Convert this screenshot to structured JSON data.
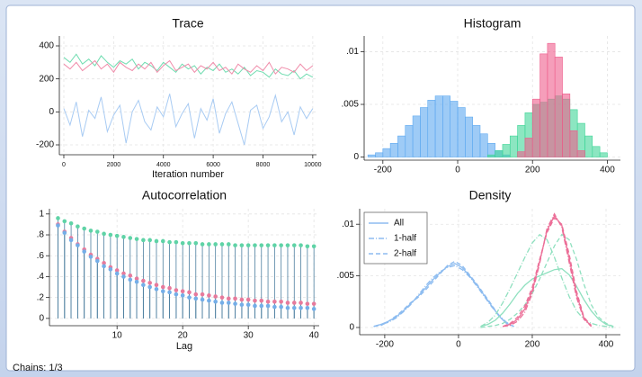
{
  "footer": "Chains: 1/3",
  "chart_data": [
    {
      "type": "line",
      "title": "Trace",
      "xlabel": "Iteration number",
      "x": [
        0,
        250,
        500,
        750,
        1000,
        1250,
        1500,
        1750,
        2000,
        2250,
        2500,
        2750,
        3000,
        3250,
        3500,
        3750,
        4000,
        4250,
        4500,
        4750,
        5000,
        5250,
        5500,
        5750,
        6000,
        6250,
        6500,
        6750,
        7000,
        7250,
        7500,
        7750,
        8000,
        8250,
        8500,
        8750,
        9000,
        9250,
        9500,
        9750,
        10000
      ],
      "series": [
        {
          "color": "#6fdcb0",
          "values": [
            330,
            300,
            350,
            290,
            320,
            280,
            340,
            300,
            270,
            310,
            290,
            320,
            260,
            300,
            280,
            250,
            300,
            270,
            240,
            290,
            260,
            280,
            230,
            270,
            250,
            290,
            240,
            260,
            230,
            270,
            220,
            250,
            240,
            210,
            260,
            230,
            220,
            250,
            200,
            230,
            210
          ]
        },
        {
          "color": "#f08caa",
          "values": [
            290,
            260,
            300,
            250,
            280,
            310,
            260,
            290,
            240,
            300,
            270,
            250,
            290,
            260,
            300,
            240,
            280,
            310,
            250,
            270,
            290,
            240,
            280,
            260,
            300,
            250,
            270,
            230,
            290,
            260,
            240,
            280,
            250,
            300,
            230,
            270,
            260,
            240,
            290,
            250,
            280
          ]
        },
        {
          "color": "#a8cbf3",
          "values": [
            20,
            -80,
            60,
            -150,
            10,
            -40,
            90,
            -120,
            -20,
            40,
            -190,
            0,
            70,
            -60,
            -110,
            30,
            -30,
            110,
            -90,
            -10,
            50,
            -160,
            20,
            -50,
            80,
            -130,
            -10,
            60,
            -70,
            -200,
            10,
            40,
            -100,
            -30,
            100,
            -60,
            0,
            -140,
            30,
            -40,
            20
          ]
        }
      ],
      "xlim": [
        -180,
        10150
      ],
      "ylim": [
        -260,
        460
      ],
      "xticks": [
        0,
        2000,
        4000,
        6000,
        8000,
        10000
      ],
      "yticks": [
        -200,
        0,
        200,
        400
      ],
      "grid": true
    },
    {
      "type": "histogram",
      "title": "Histogram",
      "series": [
        {
          "color": "#5ea9f0",
          "bins": [
            -240,
            -220,
            -200,
            -180,
            -160,
            -140,
            -120,
            -100,
            -80,
            -60,
            -40,
            -20,
            0,
            20,
            40,
            60,
            80,
            100,
            120,
            140
          ],
          "values": [
            0.0002,
            0.0004,
            0.0008,
            0.0013,
            0.002,
            0.003,
            0.0039,
            0.0047,
            0.0054,
            0.0058,
            0.0058,
            0.0053,
            0.0047,
            0.0038,
            0.003,
            0.0022,
            0.0013,
            0.0006,
            0.0002
          ]
        },
        {
          "color": "#3fd597",
          "bins": [
            80,
            100,
            120,
            140,
            160,
            180,
            200,
            220,
            240,
            260,
            280,
            300,
            320,
            340,
            360,
            380,
            400
          ],
          "values": [
            0.0002,
            0.0006,
            0.0012,
            0.002,
            0.003,
            0.0042,
            0.005,
            0.0052,
            0.0055,
            0.0058,
            0.0055,
            0.0045,
            0.0032,
            0.002,
            0.001,
            0.0004
          ]
        },
        {
          "color": "#ee5d8c",
          "bins": [
            160,
            180,
            200,
            220,
            240,
            260,
            280,
            300,
            320,
            340
          ],
          "values": [
            0.0005,
            0.0018,
            0.0055,
            0.0098,
            0.0108,
            0.0095,
            0.006,
            0.0025,
            0.0006
          ]
        }
      ],
      "xlim": [
        -250,
        435
      ],
      "ylim": [
        -0.0003,
        0.0115
      ],
      "xticks": [
        -200,
        0,
        200,
        400
      ],
      "yticks": [
        0,
        {
          "value": 0.005,
          "label": ".005"
        },
        {
          "value": 0.01,
          "label": ".01"
        }
      ],
      "grid": true
    },
    {
      "type": "stem",
      "title": "Autocorrelation",
      "xlabel": "Lag",
      "x": [
        1,
        2,
        3,
        4,
        5,
        6,
        7,
        8,
        9,
        10,
        11,
        12,
        13,
        14,
        15,
        16,
        17,
        18,
        19,
        20,
        21,
        22,
        23,
        24,
        25,
        26,
        27,
        28,
        29,
        30,
        31,
        32,
        33,
        34,
        35,
        36,
        37,
        38,
        39,
        40
      ],
      "series": [
        {
          "color": "#5fd3a6",
          "values": [
            0.96,
            0.93,
            0.91,
            0.88,
            0.86,
            0.84,
            0.83,
            0.81,
            0.8,
            0.79,
            0.78,
            0.77,
            0.76,
            0.75,
            0.75,
            0.74,
            0.74,
            0.73,
            0.73,
            0.72,
            0.72,
            0.72,
            0.71,
            0.71,
            0.71,
            0.71,
            0.71,
            0.7,
            0.7,
            0.7,
            0.7,
            0.7,
            0.7,
            0.7,
            0.7,
            0.7,
            0.7,
            0.7,
            0.69,
            0.69
          ]
        },
        {
          "color": "#e77a9c",
          "values": [
            0.9,
            0.83,
            0.77,
            0.71,
            0.66,
            0.61,
            0.57,
            0.53,
            0.49,
            0.46,
            0.43,
            0.41,
            0.38,
            0.36,
            0.34,
            0.32,
            0.3,
            0.29,
            0.27,
            0.26,
            0.25,
            0.23,
            0.23,
            0.22,
            0.21,
            0.2,
            0.19,
            0.19,
            0.18,
            0.18,
            0.17,
            0.17,
            0.16,
            0.16,
            0.16,
            0.15,
            0.15,
            0.15,
            0.14,
            0.14
          ]
        },
        {
          "color": "#74aee8",
          "values": [
            0.89,
            0.82,
            0.75,
            0.7,
            0.64,
            0.59,
            0.55,
            0.5,
            0.47,
            0.43,
            0.4,
            0.37,
            0.35,
            0.32,
            0.3,
            0.28,
            0.26,
            0.25,
            0.23,
            0.22,
            0.2,
            0.19,
            0.18,
            0.17,
            0.16,
            0.15,
            0.15,
            0.14,
            0.13,
            0.13,
            0.12,
            0.12,
            0.12,
            0.11,
            0.11,
            0.1,
            0.1,
            0.1,
            0.1,
            0.09
          ]
        }
      ],
      "xlim": [
        -0.3,
        40.8
      ],
      "ylim": [
        -0.07,
        1.05
      ],
      "xticks": [
        10,
        20,
        30,
        40
      ],
      "yticks": [
        0,
        {
          "value": 0.2,
          "label": ".2"
        },
        {
          "value": 0.4,
          "label": ".4"
        },
        {
          "value": 0.6,
          "label": ".6"
        },
        {
          "value": 0.8,
          "label": ".8"
        },
        1
      ],
      "grid": true
    },
    {
      "type": "line",
      "title": "Density",
      "legend": "top-left",
      "series": [
        {
          "name": "All",
          "dash": "solid",
          "color": "#8dbcf0",
          "x": [
            -230,
            -210,
            -190,
            -170,
            -150,
            -130,
            -110,
            -90,
            -70,
            -50,
            -30,
            -10,
            10,
            30,
            50,
            70,
            90,
            110,
            130,
            150
          ],
          "values": [
            0.0001,
            0.0003,
            0.0006,
            0.001,
            0.0016,
            0.0023,
            0.003,
            0.0038,
            0.0046,
            0.0053,
            0.0059,
            0.0062,
            0.0058,
            0.005,
            0.0041,
            0.0031,
            0.0021,
            0.0011,
            0.0004,
            0.0001
          ]
        },
        {
          "name": "1-half",
          "dash": "dashdot",
          "color": "#8dbcf0",
          "x": [
            -230,
            -210,
            -190,
            -170,
            -150,
            -130,
            -110,
            -90,
            -70,
            -50,
            -30,
            -10,
            10,
            30,
            50,
            70,
            90,
            110,
            130,
            150
          ],
          "values": [
            0.0001,
            0.0003,
            0.0005,
            0.0009,
            0.0015,
            0.0022,
            0.0031,
            0.004,
            0.0048,
            0.0054,
            0.0058,
            0.006,
            0.0056,
            0.0049,
            0.004,
            0.003,
            0.002,
            0.0012,
            0.0005,
            0.0001
          ]
        },
        {
          "name": "2-half",
          "dash": "dash",
          "color": "#8dbcf0",
          "x": [
            -230,
            -210,
            -190,
            -170,
            -150,
            -130,
            -110,
            -90,
            -70,
            -50,
            -30,
            -10,
            10,
            30,
            50,
            70,
            90,
            110,
            130,
            150
          ],
          "values": [
            0.0001,
            0.0002,
            0.0006,
            0.0011,
            0.0017,
            0.0024,
            0.0029,
            0.0036,
            0.0044,
            0.0052,
            0.006,
            0.0064,
            0.006,
            0.0051,
            0.0042,
            0.0032,
            0.0022,
            0.0011,
            0.0004,
            0.0001
          ]
        },
        {
          "name": "All",
          "dash": "solid",
          "color": "#8fe0bf",
          "x": [
            60,
            80,
            100,
            120,
            140,
            160,
            180,
            200,
            220,
            240,
            260,
            280,
            300,
            320,
            340,
            360,
            380,
            400,
            420
          ],
          "values": [
            0.0001,
            0.0003,
            0.0007,
            0.0014,
            0.0023,
            0.0033,
            0.0041,
            0.0047,
            0.005,
            0.0053,
            0.0056,
            0.0057,
            0.0051,
            0.004,
            0.0027,
            0.0016,
            0.0008,
            0.0003,
            0.0001
          ]
        },
        {
          "name": "1-half",
          "dash": "dashdot",
          "color": "#8fe0bf",
          "x": [
            60,
            80,
            100,
            120,
            140,
            160,
            180,
            200,
            220,
            240,
            260,
            280,
            300,
            320,
            340,
            360,
            380,
            400,
            420
          ],
          "values": [
            0.0001,
            0.0005,
            0.0012,
            0.0024,
            0.0038,
            0.0053,
            0.0068,
            0.0082,
            0.009,
            0.0085,
            0.0068,
            0.0048,
            0.003,
            0.0016,
            0.0008,
            0.0004,
            0.0002,
            0.0001,
            0
          ]
        },
        {
          "name": "2-half",
          "dash": "dash",
          "color": "#8fe0bf",
          "x": [
            60,
            80,
            100,
            120,
            140,
            160,
            180,
            200,
            220,
            240,
            260,
            280,
            300,
            320,
            340,
            360,
            380,
            400,
            420
          ],
          "values": [
            0,
            0.0001,
            0.0002,
            0.0004,
            0.0008,
            0.0014,
            0.0022,
            0.0033,
            0.0047,
            0.0063,
            0.0079,
            0.009,
            0.0085,
            0.0066,
            0.0042,
            0.0022,
            0.001,
            0.0004,
            0.0001
          ]
        },
        {
          "name": "All",
          "dash": "solid",
          "color": "#ec6f98",
          "x": [
            120,
            140,
            160,
            180,
            200,
            220,
            240,
            260,
            280,
            300,
            320,
            340,
            360
          ],
          "values": [
            0.0001,
            0.0003,
            0.0008,
            0.0018,
            0.0036,
            0.0064,
            0.0094,
            0.0108,
            0.0099,
            0.0067,
            0.0032,
            0.0009,
            0.0001
          ]
        },
        {
          "name": "1-half",
          "dash": "dashdot",
          "color": "#ec6f98",
          "x": [
            120,
            140,
            160,
            180,
            200,
            220,
            240,
            260,
            280,
            300,
            320,
            340,
            360
          ],
          "values": [
            0.0001,
            0.0002,
            0.0006,
            0.0015,
            0.0033,
            0.0062,
            0.0096,
            0.011,
            0.0097,
            0.0063,
            0.0029,
            0.0008,
            0.0001
          ]
        },
        {
          "name": "2-half",
          "dash": "dash",
          "color": "#ec6f98",
          "x": [
            120,
            140,
            160,
            180,
            200,
            220,
            240,
            260,
            280,
            300,
            320,
            340,
            360
          ],
          "values": [
            0.0001,
            0.0004,
            0.001,
            0.0021,
            0.0039,
            0.0066,
            0.0092,
            0.0106,
            0.01,
            0.0071,
            0.0035,
            0.001,
            0.0002
          ]
        }
      ],
      "xlim": [
        -268,
        439
      ],
      "ylim": [
        -0.0007,
        0.0115
      ],
      "xticks": [
        -200,
        0,
        200,
        400
      ],
      "yticks": [
        0,
        {
          "value": 0.005,
          "label": ".005"
        },
        {
          "value": 0.01,
          "label": ".01"
        }
      ],
      "grid": true
    }
  ]
}
